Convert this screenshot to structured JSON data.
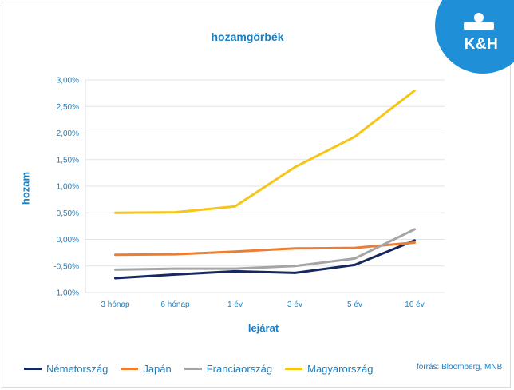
{
  "slide": {
    "title": "hozamgörbék",
    "source": "forrás: Bloomberg, MNB",
    "logo_text": "K&H"
  },
  "colors": {
    "brand_blue": "#1f8fd8",
    "text_blue": "#1a7fc1"
  },
  "chart_data": {
    "type": "line",
    "title": "hozamgörbék",
    "xlabel": "lejárat",
    "ylabel": "hozam",
    "categories": [
      "3 hónap",
      "6 hónap",
      "1 év",
      "3 év",
      "5 év",
      "10 év"
    ],
    "ylim": [
      -1.0,
      3.0
    ],
    "yticks": [
      -1.0,
      -0.5,
      0.0,
      0.5,
      1.0,
      1.5,
      2.0,
      2.5,
      3.0
    ],
    "ytick_labels": [
      "-1,00%",
      "-0,50%",
      "0,00%",
      "0,50%",
      "1,00%",
      "1,50%",
      "2,00%",
      "2,50%",
      "3,00%"
    ],
    "grid": true,
    "legend_position": "bottom",
    "series": [
      {
        "name": "Németország",
        "color": "#17285e",
        "values": [
          -0.73,
          -0.66,
          -0.6,
          -0.63,
          -0.48,
          -0.02
        ]
      },
      {
        "name": "Japán",
        "color": "#ed7d31",
        "values": [
          -0.29,
          -0.28,
          -0.23,
          -0.17,
          -0.16,
          -0.06
        ]
      },
      {
        "name": "Franciaország",
        "color": "#a5a5a5",
        "values": [
          -0.57,
          -0.55,
          -0.55,
          -0.5,
          -0.36,
          0.19
        ]
      },
      {
        "name": "Magyarország",
        "color": "#f5c518",
        "values": [
          0.5,
          0.51,
          0.62,
          1.36,
          1.93,
          2.8
        ]
      }
    ]
  }
}
